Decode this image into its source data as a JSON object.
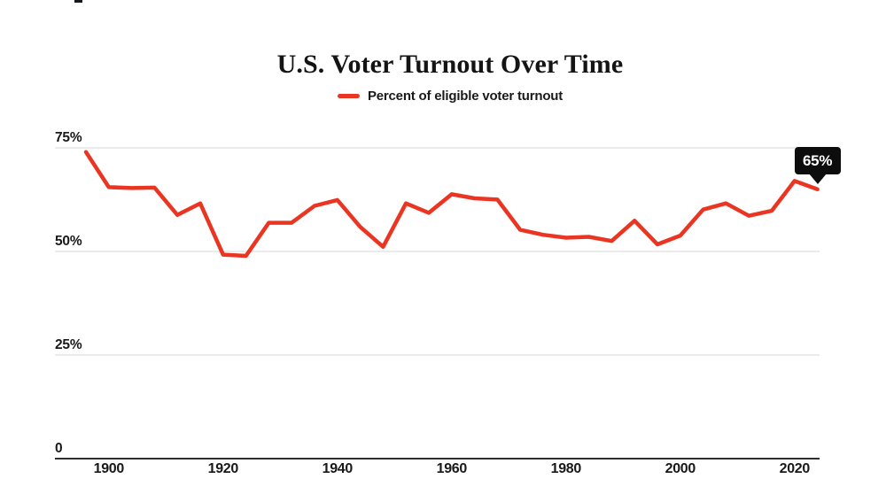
{
  "title": "U.S. Voter Turnout Over Time",
  "legend": {
    "label": "Percent of eligible voter turnout",
    "swatch_color": "#EB3523"
  },
  "annotation": {
    "label": "65%",
    "background": "#0d0d0d",
    "text_color": "#ffffff",
    "points_to_year": 2024,
    "points_to_value": 65
  },
  "axes": {
    "y_ticks": [
      {
        "label": "75%",
        "value": 75
      },
      {
        "label": "50%",
        "value": 50
      },
      {
        "label": "25%",
        "value": 25
      },
      {
        "label": "0",
        "value": 0
      }
    ],
    "x_ticks": [
      {
        "label": "1900",
        "year": 1900
      },
      {
        "label": "1920",
        "year": 1920
      },
      {
        "label": "1940",
        "year": 1940
      },
      {
        "label": "1960",
        "year": 1960
      },
      {
        "label": "1980",
        "year": 1980
      },
      {
        "label": "2000",
        "year": 2000
      },
      {
        "label": "2020",
        "year": 2020
      }
    ]
  },
  "chart_data": {
    "type": "line",
    "title": "U.S. Voter Turnout Over Time",
    "xlabel": "",
    "ylabel": "",
    "ylim": [
      0,
      80
    ],
    "x_range": [
      1896,
      2024
    ],
    "grid": "horizontal",
    "legend_position": "top-center",
    "series": [
      {
        "name": "Percent of eligible voter turnout",
        "color": "#EB3523",
        "x": [
          1896,
          1900,
          1904,
          1908,
          1912,
          1916,
          1920,
          1924,
          1928,
          1932,
          1936,
          1940,
          1944,
          1948,
          1952,
          1956,
          1960,
          1964,
          1968,
          1972,
          1976,
          1980,
          1984,
          1988,
          1992,
          1996,
          2000,
          2004,
          2008,
          2012,
          2016,
          2020,
          2024
        ],
        "values": [
          74,
          65.5,
          65.3,
          65.4,
          58.8,
          61.6,
          49.2,
          48.9,
          56.9,
          56.9,
          61.0,
          62.4,
          55.9,
          51.1,
          61.6,
          59.3,
          63.8,
          62.8,
          62.5,
          55.2,
          54.0,
          53.3,
          53.5,
          52.5,
          57.4,
          51.7,
          53.8,
          60.1,
          61.6,
          58.6,
          59.8,
          67.0,
          65.0
        ]
      }
    ]
  }
}
